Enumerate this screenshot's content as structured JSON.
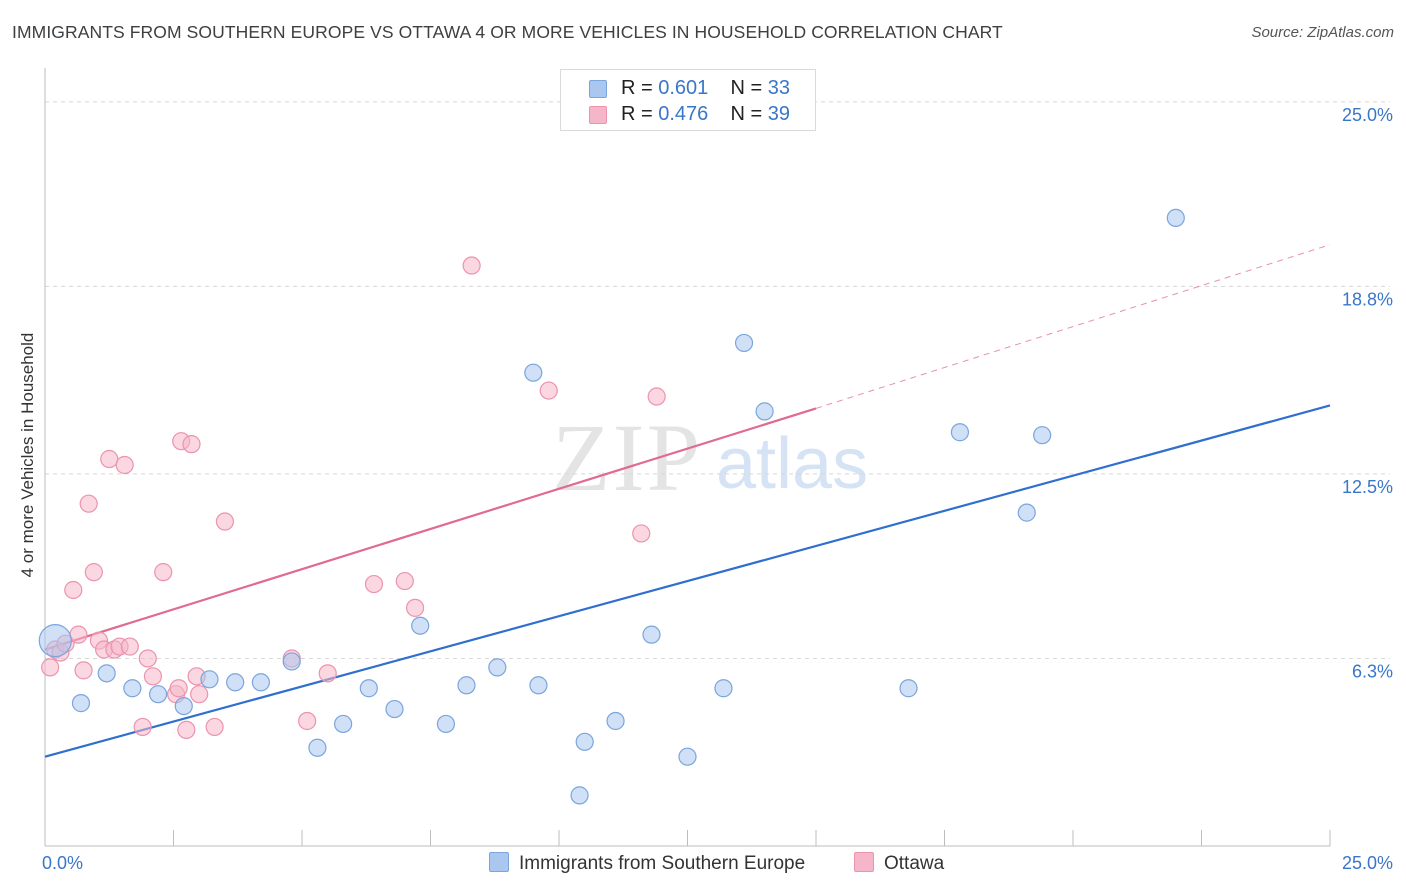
{
  "title": "IMMIGRANTS FROM SOUTHERN EUROPE VS OTTAWA 4 OR MORE VEHICLES IN HOUSEHOLD CORRELATION CHART",
  "source": "Source: ZipAtlas.com",
  "colors": {
    "blue": "#a9c7ef",
    "blue_stroke": "#7aa5dd",
    "blue_line": "#2f6fcf",
    "pink": "#f6b6c9",
    "pink_stroke": "#ec93ae",
    "pink_line": "#e06a92",
    "tick_label": "#3a76c8"
  },
  "legend": {
    "rows": [
      {
        "r_label": "R =",
        "r_value": "0.601",
        "n_label": "N =",
        "n_value": "33"
      },
      {
        "r_label": "R =",
        "r_value": "0.476",
        "n_label": "N =",
        "n_value": "39"
      }
    ]
  },
  "watermark": {
    "zip": "ZIP",
    "atlas": "atlas"
  },
  "chart_data": {
    "type": "scatter",
    "title": "IMMIGRANTS FROM SOUTHERN EUROPE VS OTTAWA 4 OR MORE VEHICLES IN HOUSEHOLD CORRELATION CHART",
    "xlabel": "",
    "ylabel": "4 or more Vehicles in Household",
    "xlim": [
      0,
      25
    ],
    "ylim": [
      0,
      25.8
    ],
    "x_tick_labels": [
      {
        "value": 0,
        "label": "0.0%"
      },
      {
        "value": 25,
        "label": "25.0%"
      }
    ],
    "y_tick_labels": [
      {
        "value": 6.3,
        "label": "6.3%"
      },
      {
        "value": 12.5,
        "label": "12.5%"
      },
      {
        "value": 18.8,
        "label": "18.8%"
      },
      {
        "value": 25.0,
        "label": "25.0%"
      }
    ],
    "series": [
      {
        "name": "Immigrants from Southern Europe",
        "color": "blue",
        "trend": {
          "x0": 0,
          "y0": 3.0,
          "x1": 25,
          "y1": 14.8,
          "dashed_to": null
        },
        "points": [
          [
            0.2,
            6.9,
            "big"
          ],
          [
            0.7,
            4.8
          ],
          [
            1.2,
            5.8
          ],
          [
            1.7,
            5.3
          ],
          [
            2.2,
            5.1
          ],
          [
            2.7,
            4.7
          ],
          [
            3.2,
            5.6
          ],
          [
            3.7,
            5.5
          ],
          [
            4.2,
            5.5
          ],
          [
            4.8,
            6.2
          ],
          [
            5.3,
            3.3
          ],
          [
            5.8,
            4.1
          ],
          [
            6.3,
            5.3
          ],
          [
            6.8,
            4.6
          ],
          [
            7.3,
            7.4
          ],
          [
            7.8,
            4.1
          ],
          [
            8.2,
            5.4
          ],
          [
            8.8,
            6.0
          ],
          [
            9.5,
            15.9
          ],
          [
            9.6,
            5.4
          ],
          [
            10.4,
            1.7
          ],
          [
            10.5,
            3.5
          ],
          [
            11.1,
            4.2
          ],
          [
            11.8,
            7.1
          ],
          [
            12.5,
            3.0
          ],
          [
            13.2,
            5.3
          ],
          [
            13.6,
            16.9
          ],
          [
            14.0,
            14.6
          ],
          [
            16.8,
            5.3
          ],
          [
            17.8,
            13.9
          ],
          [
            19.1,
            11.2
          ],
          [
            19.4,
            13.8
          ],
          [
            22.0,
            21.1
          ]
        ]
      },
      {
        "name": "Ottawa",
        "color": "pink",
        "trend": {
          "x0": 0,
          "y0": 6.6,
          "x1": 15.0,
          "y1": 14.7,
          "dashed_to": {
            "x": 25,
            "y": 20.2
          }
        },
        "points": [
          [
            0.1,
            6.0
          ],
          [
            0.2,
            6.6
          ],
          [
            0.3,
            6.5
          ],
          [
            0.4,
            6.8
          ],
          [
            0.55,
            8.6
          ],
          [
            0.65,
            7.1
          ],
          [
            0.75,
            5.9
          ],
          [
            0.85,
            11.5
          ],
          [
            0.95,
            9.2
          ],
          [
            1.05,
            6.9
          ],
          [
            1.15,
            6.6
          ],
          [
            1.25,
            13.0
          ],
          [
            1.35,
            6.6
          ],
          [
            1.45,
            6.7
          ],
          [
            1.55,
            12.8
          ],
          [
            1.65,
            6.7
          ],
          [
            1.9,
            4.0
          ],
          [
            2.0,
            6.3
          ],
          [
            2.1,
            5.7
          ],
          [
            2.3,
            9.2
          ],
          [
            2.55,
            5.1
          ],
          [
            2.6,
            5.3
          ],
          [
            2.65,
            13.6
          ],
          [
            2.75,
            3.9
          ],
          [
            2.85,
            13.5
          ],
          [
            2.95,
            5.7
          ],
          [
            3.0,
            5.1
          ],
          [
            3.3,
            4.0
          ],
          [
            3.5,
            10.9
          ],
          [
            4.8,
            6.3
          ],
          [
            5.1,
            4.2
          ],
          [
            5.5,
            5.8
          ],
          [
            6.4,
            8.8
          ],
          [
            7.0,
            8.9
          ],
          [
            7.2,
            8.0
          ],
          [
            8.3,
            19.5
          ],
          [
            9.8,
            15.3
          ],
          [
            11.6,
            10.5
          ],
          [
            11.9,
            15.1
          ]
        ]
      }
    ]
  },
  "bottom_legend": {
    "series1": "Immigrants from Southern Europe",
    "series2": "Ottawa"
  }
}
